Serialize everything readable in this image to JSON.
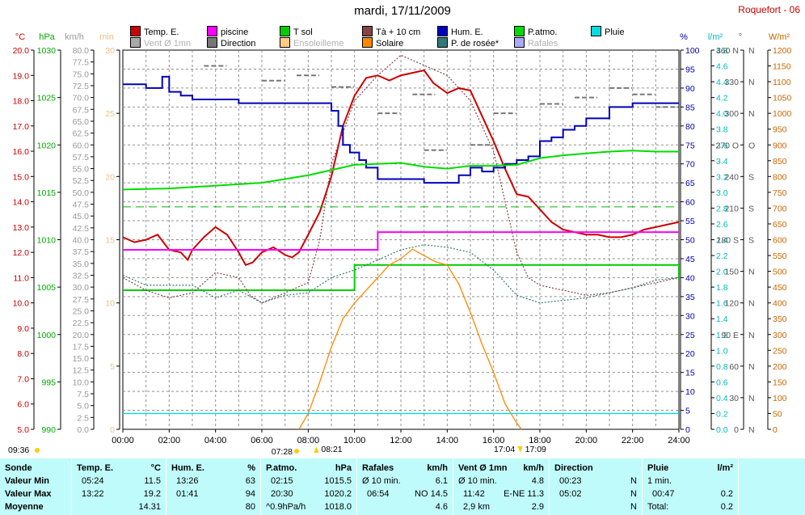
{
  "title": "mardi, 17/11/2009",
  "station": "Roquefort - 06",
  "legend": [
    {
      "label": "Temp. E.",
      "color": "#cc0000"
    },
    {
      "label": "piscine",
      "color": "#ff00ff"
    },
    {
      "label": "T sol",
      "color": "#00cc00"
    },
    {
      "label": "Tà + 10 cm",
      "color": "#884444"
    },
    {
      "label": "Hum. E.",
      "color": "#0000bb"
    },
    {
      "label": "P.atmo.",
      "color": "#00dd00"
    },
    {
      "label": "Pluie",
      "color": "#00dddd"
    },
    {
      "label": "Vent Ø 1mn",
      "color": "#aaaaaa"
    },
    {
      "label": "Direction",
      "color": "#777777"
    },
    {
      "label": "Ensoleilleme",
      "color": "#ffcc88"
    },
    {
      "label": "Solaire",
      "color": "#ff8800"
    },
    {
      "label": "P. de rosée*",
      "color": "#337777"
    },
    {
      "label": "Rafales",
      "color": "#aaaaff"
    }
  ],
  "axes": {
    "temp": {
      "unit": "°C",
      "min": 5.0,
      "max": 20.0,
      "step": 1.0,
      "color": "#cc0000"
    },
    "pressure": {
      "unit": "hPa",
      "min": 990,
      "max": 1030,
      "step": 5,
      "color": "#00aa00"
    },
    "wind": {
      "unit": "km/h",
      "min": 0,
      "max": 80,
      "step": 2.5,
      "color": "#999999"
    },
    "sun": {
      "unit": "min",
      "min": 0,
      "max": 30,
      "step": 5,
      "color": "#f0c080"
    },
    "humidity": {
      "unit": "%",
      "min": 0,
      "max": 100,
      "step": 5,
      "color": "#0000aa"
    },
    "rain": {
      "unit": "l/m²",
      "min": 0,
      "max": 4.8,
      "step": 0.2,
      "color": "#00bbbb"
    },
    "direction": {
      "unit": "°",
      "ticks": [
        {
          "v": 0,
          "l": "0"
        },
        {
          "v": 30,
          "l": "30"
        },
        {
          "v": 60,
          "l": "60"
        },
        {
          "v": 90,
          "l": "90 E"
        },
        {
          "v": 120,
          "l": "120"
        },
        {
          "v": 150,
          "l": "150"
        },
        {
          "v": 180,
          "l": "180 S"
        },
        {
          "v": 210,
          "l": "210"
        },
        {
          "v": 240,
          "l": "240"
        },
        {
          "v": 270,
          "l": "270 O"
        },
        {
          "v": 300,
          "l": "300"
        },
        {
          "v": 330,
          "l": "330"
        },
        {
          "v": 360,
          "l": "360 N"
        }
      ],
      "right_labels": [
        "N",
        "N",
        "N",
        "N",
        "N",
        "N",
        "S",
        "S",
        "S",
        "O",
        "N",
        "N",
        "N"
      ],
      "color": "#555555"
    },
    "solar": {
      "unit": "W/m²",
      "min": 0,
      "max": 1200,
      "step": 50,
      "color": "#cc6600"
    },
    "time": {
      "ticks": [
        "00:00",
        "02:00",
        "04:00",
        "06:00",
        "08:00",
        "10:00",
        "12:00",
        "14:00",
        "16:00",
        "18:00",
        "20:00",
        "22:00",
        "24:00"
      ]
    }
  },
  "time_markers": {
    "first": "09:36",
    "sunrise_a": "07:28",
    "sunrise_b": "08:21",
    "sunset_a": "17:04",
    "sunset_b": "17:09"
  },
  "chart_data": {
    "type": "line",
    "x_unit": "hours",
    "series": [
      {
        "name": "Temp. E.",
        "axis": "temp",
        "color": "#cc0000",
        "x": [
          0,
          0.5,
          1,
          1.5,
          2,
          2.5,
          2.8,
          3,
          3.5,
          4,
          4.5,
          5,
          5.3,
          5.6,
          6,
          6.5,
          7,
          7.3,
          7.6,
          8,
          8.5,
          9,
          9.5,
          10,
          10.5,
          11,
          11.5,
          12,
          12.5,
          13,
          13.4,
          14,
          14.5,
          15,
          15.5,
          16,
          16.5,
          17,
          17.5,
          18,
          18.5,
          19,
          19.5,
          20,
          20.5,
          21,
          21.5,
          22,
          22.5,
          23,
          23.5,
          24
        ],
        "y": [
          12.6,
          12.4,
          12.5,
          12.7,
          12.1,
          12.0,
          11.7,
          12.1,
          12.6,
          13.0,
          12.7,
          12.0,
          11.5,
          11.6,
          12.0,
          12.2,
          11.9,
          11.8,
          12.0,
          12.7,
          13.6,
          15.0,
          17.0,
          18.2,
          18.9,
          19.0,
          18.8,
          19.0,
          19.1,
          19.2,
          18.7,
          18.3,
          18.5,
          18.4,
          17.4,
          16.4,
          15.3,
          14.3,
          14.2,
          13.7,
          13.2,
          12.9,
          12.8,
          12.7,
          12.7,
          12.6,
          12.6,
          12.7,
          12.9,
          13.0,
          13.1,
          13.2
        ]
      },
      {
        "name": "piscine",
        "axis": "temp",
        "color": "#ff00ff",
        "x": [
          0,
          10.8,
          11.0,
          24
        ],
        "y": [
          12.1,
          12.1,
          12.8,
          12.8
        ]
      },
      {
        "name": "T sol",
        "axis": "temp",
        "color": "#00cc00",
        "x": [
          0,
          8,
          10,
          16,
          24
        ],
        "y": [
          10.5,
          10.5,
          11.5,
          11.5,
          10.9
        ]
      },
      {
        "name": "Tà + 10 cm",
        "axis": "temp",
        "color": "#884444",
        "x": [
          0,
          1,
          2,
          3,
          4,
          5,
          5.5,
          6,
          7,
          8,
          8.5,
          9,
          10,
          11,
          12,
          13,
          14,
          15,
          16,
          16.5,
          17,
          17.5,
          18,
          19,
          20,
          21,
          22,
          23,
          24
        ],
        "y": [
          11.0,
          10.5,
          10.2,
          10.4,
          11.2,
          11.0,
          10.3,
          10.0,
          10.4,
          10.8,
          12.5,
          15.5,
          18.0,
          19.0,
          19.8,
          19.4,
          19.0,
          18.0,
          16.0,
          14.0,
          12.0,
          11.0,
          10.7,
          10.5,
          10.3,
          10.4,
          10.6,
          10.8,
          11.0
        ]
      },
      {
        "name": "Hum. E.",
        "axis": "humidity",
        "color": "#0000bb",
        "x": [
          0,
          1,
          1.7,
          2,
          2.5,
          3,
          4,
          5,
          6,
          7,
          8,
          9,
          9.3,
          9.5,
          9.8,
          10.2,
          10.5,
          11,
          11.5,
          12,
          12.5,
          13,
          13.5,
          14,
          14.5,
          15,
          15.5,
          16,
          16.5,
          17,
          17.5,
          18,
          18.5,
          19,
          19.5,
          20,
          21,
          22,
          23,
          24
        ],
        "y": [
          91,
          90,
          93,
          89,
          88,
          87,
          87,
          86,
          86,
          86,
          86,
          84,
          80,
          75,
          73,
          71,
          69,
          66,
          66,
          66,
          66,
          65,
          65,
          65,
          67,
          69,
          68,
          69,
          70,
          71,
          72,
          76,
          77,
          79,
          80,
          82,
          85,
          86,
          86,
          86
        ]
      },
      {
        "name": "P.atmo.",
        "axis": "pressure",
        "color": "#00dd00",
        "x": [
          0,
          2,
          4,
          6,
          8,
          10,
          12,
          13,
          14,
          15,
          16,
          17,
          18,
          19,
          20,
          21,
          22,
          23,
          24
        ],
        "y": [
          1015.3,
          1015.4,
          1015.7,
          1016.0,
          1016.8,
          1017.9,
          1018.1,
          1017.7,
          1017.5,
          1017.8,
          1017.8,
          1017.9,
          1018.6,
          1018.9,
          1019.1,
          1019.3,
          1019.4,
          1019.3,
          1019.3
        ]
      },
      {
        "name": "P. de rosée*",
        "axis": "temp",
        "color": "#337777",
        "x": [
          0,
          1,
          2,
          3,
          4,
          5,
          6,
          7,
          8,
          9,
          10,
          11,
          12,
          13,
          14,
          15,
          16,
          17,
          18,
          19,
          20,
          21,
          22,
          23,
          24
        ],
        "y": [
          11.1,
          10.7,
          10.7,
          10.7,
          10.2,
          10.5,
          10.0,
          10.3,
          10.4,
          11.0,
          11.3,
          11.7,
          12.1,
          12.3,
          12.2,
          12.0,
          11.3,
          10.3,
          10.0,
          10.1,
          10.2,
          10.4,
          10.6,
          10.9,
          11.0
        ]
      },
      {
        "name": "Solaire",
        "axis": "solar",
        "color": "#ff8800",
        "x": [
          7.6,
          8,
          8.5,
          9,
          9.5,
          10,
          10.5,
          11,
          11.5,
          12,
          12.5,
          13,
          13.5,
          14,
          14.5,
          15,
          15.5,
          16,
          16.5,
          17,
          17.2
        ],
        "y": [
          0,
          50,
          150,
          260,
          350,
          400,
          440,
          480,
          520,
          540,
          570,
          550,
          530,
          520,
          460,
          370,
          270,
          180,
          80,
          20,
          0
        ]
      },
      {
        "name": "Pluie",
        "axis": "rain",
        "color": "#00dddd",
        "x": [
          0,
          24
        ],
        "y": [
          0.2,
          0.2
        ]
      },
      {
        "name": "Direction",
        "axis": "direction",
        "color": "#777777",
        "x": [
          3.5,
          6,
          7.5,
          9,
          11,
          12.5,
          13,
          15,
          16,
          18,
          19.5,
          21,
          22,
          23
        ],
        "y": [
          345,
          331,
          336,
          325,
          300,
          318,
          265,
          270,
          300,
          309,
          315,
          324,
          318,
          306
        ]
      }
    ]
  },
  "summary": {
    "headers": [
      {
        "name": "Sonde",
        "unit": ""
      },
      {
        "name": "Temp. E.",
        "unit": "°C"
      },
      {
        "name": "Hum. E.",
        "unit": "%"
      },
      {
        "name": "P.atmo.",
        "unit": "hPa"
      },
      {
        "name": "Rafales",
        "unit": "km/h"
      },
      {
        "name": "Vent Ø 1mn",
        "unit": "km/h"
      },
      {
        "name": "Direction",
        "unit": ""
      },
      {
        "name": "Pluie",
        "unit": "l/m²"
      }
    ],
    "row_labels": [
      "Valeur Min",
      "Valeur Max",
      "Moyenne"
    ],
    "temp": [
      [
        "05:24",
        "11.5"
      ],
      [
        "13:22",
        "19.2"
      ],
      [
        "",
        "14.31"
      ]
    ],
    "hum": [
      [
        "13:26",
        "63"
      ],
      [
        "01:41",
        "94"
      ],
      [
        "",
        "80"
      ]
    ],
    "patmo": [
      [
        "02:15",
        "1015.5"
      ],
      [
        "20:30",
        "1020.2"
      ],
      [
        "^0.9hPa/h",
        "1018.0"
      ]
    ],
    "rafales": [
      [
        "Ø 10 min.",
        "6.1"
      ],
      [
        "06:54",
        "NO 14.5"
      ],
      [
        "",
        "4.6"
      ]
    ],
    "vent": [
      [
        "Ø 10 min.",
        "4.8"
      ],
      [
        "11:42",
        "E-NE 11.3"
      ],
      [
        "2,9 km",
        "2.9"
      ]
    ],
    "direction": [
      [
        "00:23",
        "N"
      ],
      [
        "05:02",
        "N"
      ],
      [
        "",
        "N"
      ]
    ],
    "pluie": [
      [
        "1 min.",
        ""
      ],
      [
        "00:47",
        "0.2"
      ],
      [
        "Total:",
        "0.2"
      ]
    ]
  }
}
